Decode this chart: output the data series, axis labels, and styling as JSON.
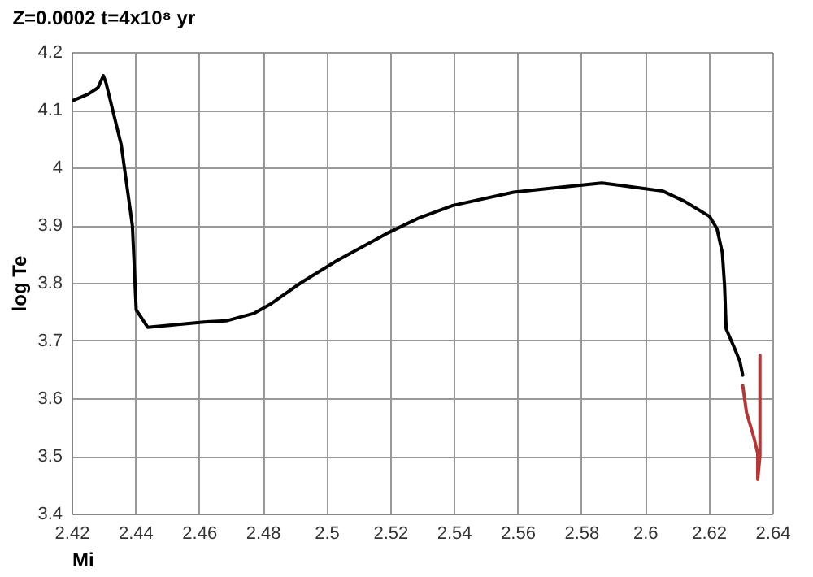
{
  "chart_data": {
    "type": "line",
    "title": "Z=0.0002 t=4x10⁸ yr",
    "xlabel": "Mi",
    "ylabel": "log Te",
    "xlim": [
      2.42,
      2.64
    ],
    "xticks": [
      2.42,
      2.44,
      2.46,
      2.48,
      2.5,
      2.52,
      2.54,
      2.56,
      2.58,
      2.6,
      2.62,
      2.64
    ],
    "ylim": [
      3.4,
      4.2
    ],
    "yticks": [
      3.4,
      3.5,
      3.6,
      3.7,
      3.8,
      3.9,
      4,
      4.1,
      4.2
    ],
    "grid": true,
    "marker": "none",
    "line_style": "solid",
    "series": [
      {
        "color": "#000000",
        "x": [
          2.42,
          2.4252,
          2.4283,
          2.43,
          2.4308,
          2.4356,
          2.4382,
          2.4391,
          2.4403,
          2.4439,
          2.4616,
          2.4685,
          2.4772,
          2.4824,
          2.492,
          2.5032,
          2.5188,
          2.5293,
          2.5397,
          2.5588,
          2.5709,
          2.5865,
          2.5987,
          2.6056,
          2.6125,
          2.6203,
          2.6226,
          2.6243,
          2.625,
          2.6255,
          2.6281,
          2.6298,
          2.6307
        ],
        "values": [
          4.115,
          4.127,
          4.138,
          4.159,
          4.147,
          4.039,
          3.935,
          3.899,
          3.753,
          3.723,
          3.732,
          3.734,
          3.747,
          3.763,
          3.8,
          3.838,
          3.885,
          3.913,
          3.934,
          3.957,
          3.964,
          3.973,
          3.964,
          3.959,
          3.941,
          3.915,
          3.894,
          3.852,
          3.795,
          3.72,
          3.687,
          3.664,
          3.64
        ]
      },
      {
        "color": "#b03a3a",
        "x": [
          2.6307,
          2.6319,
          2.6342,
          2.6354,
          2.6354,
          2.6361,
          2.6361
        ],
        "values": [
          3.622,
          3.575,
          3.532,
          3.504,
          3.459,
          3.5,
          3.675
        ]
      }
    ]
  }
}
